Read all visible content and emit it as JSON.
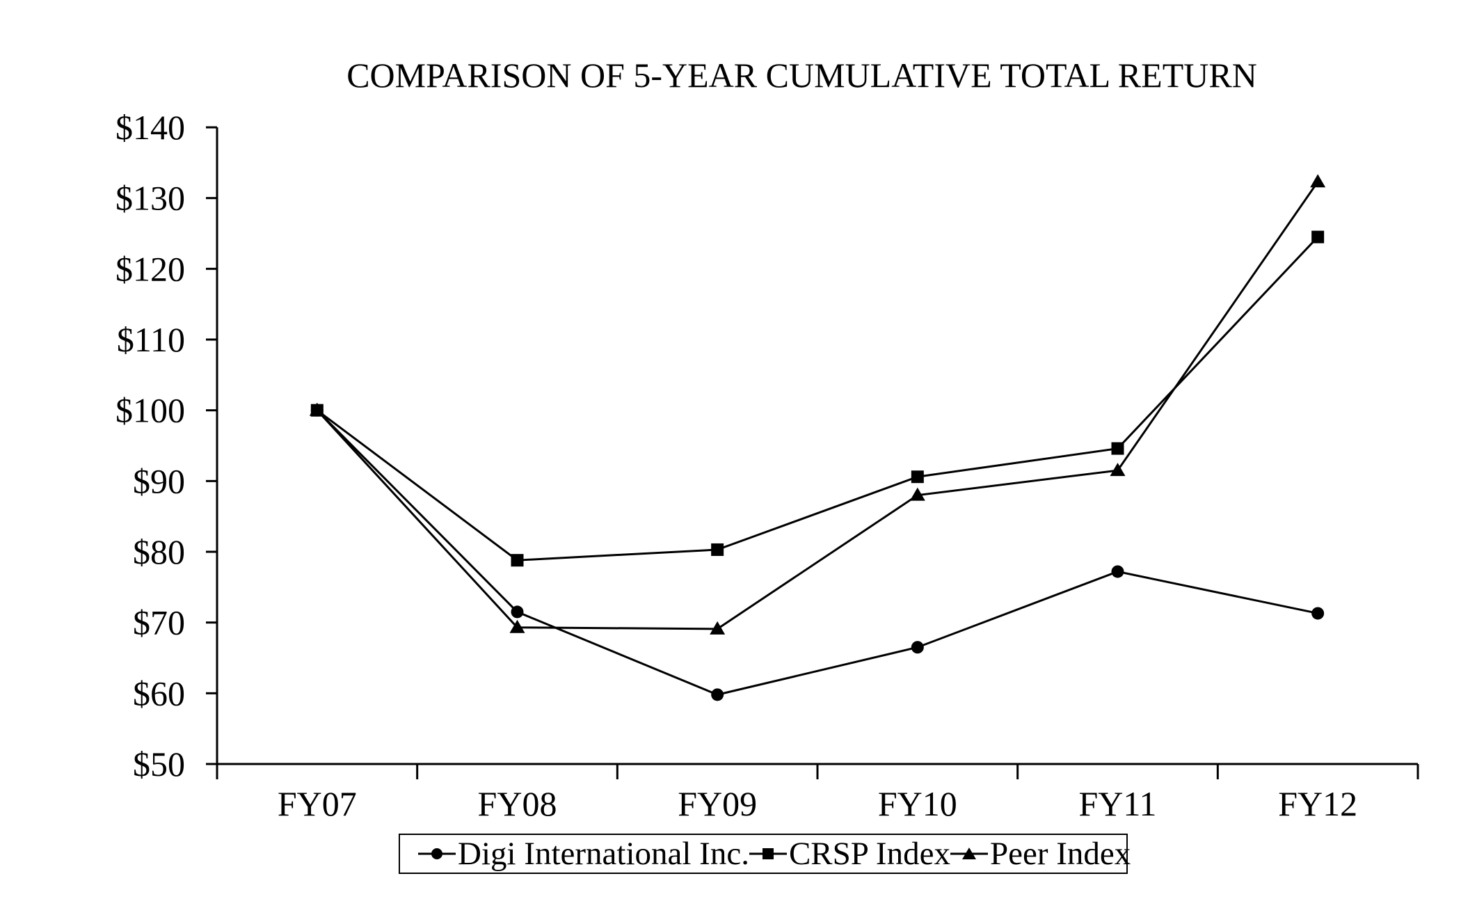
{
  "title": "COMPARISON OF 5-YEAR CUMULATIVE TOTAL RETURN",
  "chart_data": {
    "type": "line",
    "title": "COMPARISON OF 5-YEAR CUMULATIVE TOTAL RETURN",
    "categories": [
      "FY07",
      "FY08",
      "FY09",
      "FY10",
      "FY11",
      "FY12"
    ],
    "series": [
      {
        "name": "Digi International Inc.",
        "marker": "circle",
        "values": [
          100,
          71.5,
          59.8,
          66.5,
          77.2,
          71.3
        ]
      },
      {
        "name": "CRSP Index",
        "marker": "square",
        "values": [
          100,
          78.8,
          80.3,
          90.6,
          94.6,
          124.5
        ]
      },
      {
        "name": "Peer Index",
        "marker": "triangle",
        "values": [
          100,
          69.3,
          69.1,
          88.0,
          91.5,
          132.3
        ]
      }
    ],
    "xlabel": "",
    "ylabel": "",
    "ylim": [
      50,
      140
    ],
    "ytick_step": 10,
    "y_tick_labels": [
      "$50",
      "$60",
      "$70",
      "$80",
      "$90",
      "$100",
      "$110",
      "$120",
      "$130",
      "$140"
    ],
    "x_tick_labels": [
      "FY07",
      "FY08",
      "FY09",
      "FY10",
      "FY11",
      "FY12"
    ],
    "grid": false,
    "legend_position": "bottom",
    "line_color": "#000000",
    "background_color": "#ffffff"
  }
}
